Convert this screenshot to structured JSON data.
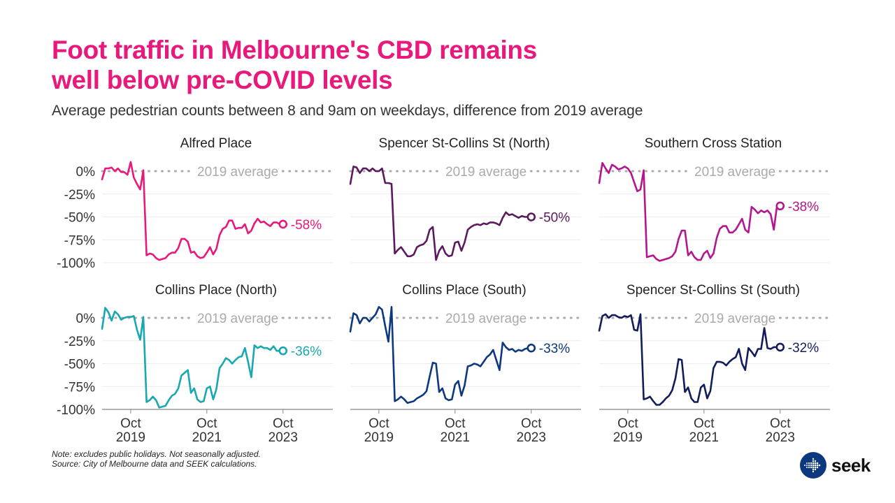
{
  "title_line1": "Foot traffic in Melbourne's CBD remains",
  "title_line2": "well below pre-COVID levels",
  "subtitle": "Average pedestrian counts between 8 and 9am on weekdays, difference from 2019 average",
  "note_line1": "Note: excludes public holidays. Not seasonally adjusted.",
  "note_line2": "Source: City of Melbourne data and SEEK calculations.",
  "logo": {
    "text": "seek",
    "icon": "seek-arrow-logo-icon",
    "color": "#0d3880"
  },
  "chart_data": {
    "type": "line",
    "title": "Foot traffic in Melbourne's CBD remains well below pre-COVID levels",
    "x_start": "2019-01",
    "x_end": "2024-06",
    "x_step": "month",
    "xticks": [
      {
        "label1": "Oct",
        "label2": "2019",
        "month_index": 9
      },
      {
        "label1": "Oct",
        "label2": "2021",
        "month_index": 33
      },
      {
        "label1": "Oct",
        "label2": "2023",
        "month_index": 57
      }
    ],
    "yticks": [
      "0%",
      "-25%",
      "-50%",
      "-75%",
      "-100%"
    ],
    "ytick_values": [
      0,
      -25,
      -50,
      -75,
      -100
    ],
    "ylim": [
      -100,
      10
    ],
    "reference_line": {
      "value": 0,
      "label": "2019 average",
      "color": "#aaaaaa"
    },
    "grid": true,
    "panels": [
      {
        "name": "Alfred Place",
        "color": "#e8197b",
        "end_label": "-58%",
        "values": [
          -9,
          3,
          3,
          4,
          0,
          3,
          -1,
          -1,
          -4,
          10,
          -7,
          -14,
          -20,
          1,
          -92,
          -90,
          -91,
          -95,
          -97,
          -96,
          -95,
          -91,
          -89,
          -89,
          -84,
          -74,
          -74,
          -77,
          -89,
          -88,
          -93,
          -95,
          -94,
          -89,
          -83,
          -91,
          -85,
          -70,
          -63,
          -61,
          -54,
          -54,
          -63,
          -62,
          -62,
          -58,
          -68,
          -65,
          -57,
          -52,
          -56,
          -55,
          -58,
          -60,
          -56,
          -56,
          -58,
          -58
        ]
      },
      {
        "name": "Spencer St-Collins St (North)",
        "color": "#5c1a5e",
        "end_label": "-50%",
        "values": [
          -14,
          5,
          4,
          -2,
          3,
          3,
          0,
          3,
          0,
          0,
          3,
          -13,
          -13,
          -14,
          -90,
          -86,
          -83,
          -88,
          -93,
          -93,
          -91,
          -83,
          -81,
          -80,
          -76,
          -64,
          -61,
          -97,
          -87,
          -82,
          -90,
          -93,
          -92,
          -78,
          -77,
          -87,
          -78,
          -64,
          -61,
          -59,
          -58,
          -59,
          -57,
          -58,
          -56,
          -56,
          -57,
          -59,
          -51,
          -45,
          -48,
          -47,
          -49,
          -51,
          -49,
          -50,
          -50,
          -50
        ]
      },
      {
        "name": "Southern Cross Station",
        "color": "#b5168e",
        "end_label": "-38%",
        "values": [
          -13,
          9,
          3,
          -2,
          7,
          5,
          2,
          3,
          5,
          3,
          -2,
          -12,
          -22,
          -20,
          1,
          -94,
          -93,
          -92,
          -96,
          -98,
          -97,
          -96,
          -95,
          -93,
          -88,
          -74,
          -65,
          -65,
          -92,
          -88,
          -94,
          -97,
          -97,
          -90,
          -87,
          -95,
          -90,
          -73,
          -63,
          -60,
          -60,
          -67,
          -67,
          -64,
          -58,
          -52,
          -64,
          -67,
          -39,
          -42,
          -46,
          -43,
          -45,
          -43,
          -47,
          -64,
          -38,
          -38
        ]
      },
      {
        "name": "Collins Place (North)",
        "color": "#17a8b0",
        "end_label": "-36%",
        "values": [
          -12,
          11,
          6,
          -3,
          7,
          4,
          -2,
          0,
          1,
          1,
          2,
          -13,
          -24,
          1,
          -92,
          -90,
          -86,
          -90,
          -98,
          -97,
          -96,
          -90,
          -85,
          -83,
          -77,
          -63,
          -60,
          -57,
          -82,
          -77,
          -89,
          -92,
          -91,
          -77,
          -75,
          -89,
          -78,
          -55,
          -50,
          -44,
          -46,
          -50,
          -46,
          -43,
          -42,
          -33,
          -48,
          -65,
          -30,
          -33,
          -31,
          -33,
          -33,
          -35,
          -31,
          -36,
          -36,
          -36
        ]
      },
      {
        "name": "Collins Place (South)",
        "color": "#0d3880",
        "end_label": "-33%",
        "values": [
          -15,
          5,
          3,
          -6,
          0,
          0,
          -4,
          0,
          4,
          12,
          9,
          -9,
          -26,
          12,
          -91,
          -89,
          -86,
          -89,
          -93,
          -92,
          -91,
          -88,
          -86,
          -84,
          -80,
          -64,
          -49,
          -50,
          -81,
          -77,
          -88,
          -90,
          -89,
          -73,
          -69,
          -85,
          -74,
          -53,
          -52,
          -50,
          -51,
          -53,
          -48,
          -43,
          -40,
          -35,
          -46,
          -57,
          -27,
          -32,
          -35,
          -34,
          -37,
          -35,
          -36,
          -34,
          -33,
          -33
        ]
      },
      {
        "name": "Spencer St-Collins St (South)",
        "color": "#141d5c",
        "end_label": "-32%",
        "values": [
          -14,
          2,
          4,
          0,
          3,
          3,
          1,
          0,
          2,
          1,
          3,
          -13,
          -14,
          4,
          -89,
          -88,
          -86,
          -91,
          -95,
          -95,
          -92,
          -88,
          -85,
          -79,
          -66,
          -45,
          -46,
          -81,
          -76,
          -88,
          -92,
          -92,
          -76,
          -73,
          -88,
          -80,
          -55,
          -48,
          -48,
          -49,
          -52,
          -48,
          -45,
          -43,
          -34,
          -50,
          -57,
          -33,
          -37,
          -42,
          -34,
          -34,
          -11,
          -33,
          -34,
          -32,
          -32,
          -32
        ]
      }
    ]
  }
}
